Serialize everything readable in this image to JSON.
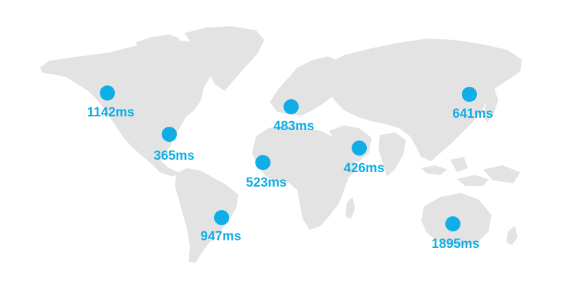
{
  "map": {
    "marker_color": "#10aee6",
    "land_color": "#e3e3e3",
    "locations": [
      {
        "id": "north-america-west",
        "latency": "1142ms"
      },
      {
        "id": "north-america-east",
        "latency": "365ms"
      },
      {
        "id": "south-america",
        "latency": "947ms"
      },
      {
        "id": "west-africa",
        "latency": "523ms"
      },
      {
        "id": "europe",
        "latency": "483ms"
      },
      {
        "id": "middle-east",
        "latency": "426ms"
      },
      {
        "id": "east-asia",
        "latency": "641ms"
      },
      {
        "id": "australia",
        "latency": "1895ms"
      }
    ]
  }
}
